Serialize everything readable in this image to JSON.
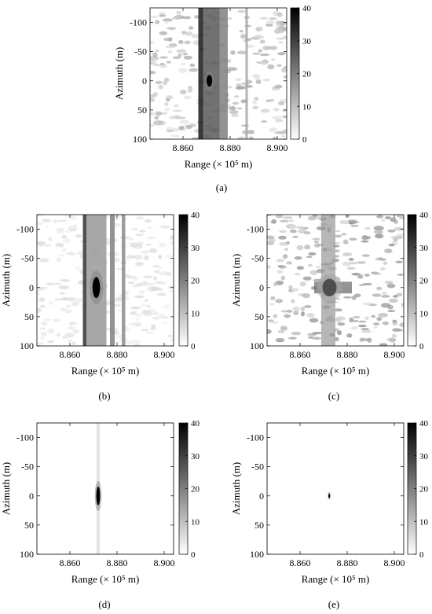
{
  "chart_data": [
    {
      "type": "heatmap",
      "id": "a",
      "caption": "(a)",
      "xlabel": "Range (× 10⁵ m)",
      "ylabel": "Azimuth (m)",
      "xticks": [
        "8.860",
        "8.880",
        "8.900"
      ],
      "xtick_values": [
        8.86,
        8.88,
        8.9
      ],
      "xlim": [
        8.846,
        8.904
      ],
      "yticks": [
        "-100",
        "-50",
        "0",
        "50",
        "100"
      ],
      "ytick_values": [
        -100,
        -50,
        0,
        50,
        100
      ],
      "ylim": [
        -125,
        100
      ],
      "colorbar": {
        "ticks": [
          "0",
          "10",
          "20",
          "30",
          "40"
        ],
        "range": [
          0,
          40
        ]
      },
      "features": [
        {
          "kind": "clutter",
          "level": 9
        },
        {
          "kind": "band",
          "x0": 8.8665,
          "x1": 8.8685,
          "level": 36
        },
        {
          "kind": "band",
          "x0": 8.8685,
          "x1": 8.8755,
          "level": 26
        },
        {
          "kind": "band",
          "x0": 8.8755,
          "x1": 8.879,
          "level": 20
        },
        {
          "kind": "band",
          "x0": 8.8865,
          "x1": 8.8875,
          "level": 14
        },
        {
          "kind": "target",
          "x": 8.8712,
          "y": 0,
          "rx": 0.0012,
          "ry": 10,
          "level": 40
        }
      ]
    },
    {
      "type": "heatmap",
      "id": "b",
      "caption": "(b)",
      "xlabel": "Range (× 10⁵ m)",
      "ylabel": "Azimuth (m)",
      "xticks": [
        "8.860",
        "8.880",
        "8.900"
      ],
      "xtick_values": [
        8.86,
        8.88,
        8.9
      ],
      "xlim": [
        8.846,
        8.904
      ],
      "yticks": [
        "-100",
        "-50",
        "0",
        "50",
        "100"
      ],
      "ytick_values": [
        -100,
        -50,
        0,
        50,
        100
      ],
      "ylim": [
        -125,
        100
      ],
      "colorbar": {
        "ticks": [
          "0",
          "10",
          "20",
          "30",
          "40"
        ],
        "range": [
          0,
          40
        ]
      },
      "features": [
        {
          "kind": "clutter",
          "level": 4
        },
        {
          "kind": "band",
          "x0": 8.8655,
          "x1": 8.867,
          "level": 32
        },
        {
          "kind": "band",
          "x0": 8.867,
          "x1": 8.8755,
          "level": 16
        },
        {
          "kind": "band",
          "x0": 8.877,
          "x1": 8.879,
          "level": 20
        },
        {
          "kind": "band",
          "x0": 8.882,
          "x1": 8.8835,
          "level": 18
        },
        {
          "kind": "target",
          "x": 8.8712,
          "y": 0,
          "rx": 0.0016,
          "ry": 18,
          "level": 40
        }
      ]
    },
    {
      "type": "heatmap",
      "id": "c",
      "caption": "(c)",
      "xlabel": "Range (× 10⁵ m)",
      "ylabel": "Azimuth (m)",
      "xticks": [
        "8.860",
        "8.880",
        "8.900"
      ],
      "xtick_values": [
        8.86,
        8.88,
        8.9
      ],
      "xlim": [
        8.846,
        8.904
      ],
      "yticks": [
        "-100",
        "-50",
        "0",
        "50",
        "100"
      ],
      "ytick_values": [
        -100,
        -50,
        0,
        50,
        100
      ],
      "ylim": [
        -125,
        100
      ],
      "colorbar": {
        "ticks": [
          "0",
          "10",
          "20",
          "30",
          "40"
        ],
        "range": [
          0,
          40
        ]
      },
      "features": [
        {
          "kind": "clutter",
          "level": 12
        },
        {
          "kind": "hcross",
          "x0": 8.866,
          "x1": 8.882,
          "y0": -10,
          "y1": 10,
          "level": 24
        },
        {
          "kind": "vcross",
          "x0": 8.869,
          "x1": 8.875,
          "y0": -125,
          "y1": 100,
          "level": 16
        },
        {
          "kind": "target",
          "x": 8.8725,
          "y": 0,
          "rx": 0.003,
          "ry": 15,
          "level": 28
        }
      ]
    },
    {
      "type": "heatmap",
      "id": "d",
      "caption": "(d)",
      "xlabel": "Range (× 10⁵ m)",
      "ylabel": "Azimuth (m)",
      "xticks": [
        "8.860",
        "8.880",
        "8.900"
      ],
      "xtick_values": [
        8.86,
        8.88,
        8.9
      ],
      "xlim": [
        8.846,
        8.904
      ],
      "yticks": [
        "-100",
        "-50",
        "0",
        "50",
        "100"
      ],
      "ytick_values": [
        -100,
        -50,
        0,
        50,
        100
      ],
      "ylim": [
        -125,
        100
      ],
      "colorbar": {
        "ticks": [
          "0",
          "10",
          "20",
          "30",
          "40"
        ],
        "range": [
          0,
          40
        ]
      },
      "features": [
        {
          "kind": "clutter",
          "level": 0
        },
        {
          "kind": "vline",
          "x0": 8.8713,
          "x1": 8.8727,
          "y0": -125,
          "y1": 100,
          "level": 7
        },
        {
          "kind": "target",
          "x": 8.872,
          "y": 0,
          "rx": 0.0008,
          "ry": 16,
          "level": 40
        }
      ]
    },
    {
      "type": "heatmap",
      "id": "e",
      "caption": "(e)",
      "xlabel": "Range (× 10⁵ m)",
      "ylabel": "Azimuth (m)",
      "xticks": [
        "8.860",
        "8.880",
        "8.900"
      ],
      "xtick_values": [
        8.86,
        8.88,
        8.9
      ],
      "xlim": [
        8.846,
        8.904
      ],
      "yticks": [
        "-100",
        "-50",
        "0",
        "50",
        "100"
      ],
      "ytick_values": [
        -100,
        -50,
        0,
        50,
        100
      ],
      "ylim": [
        -125,
        100
      ],
      "colorbar": {
        "ticks": [
          "0",
          "10",
          "20",
          "30",
          "40"
        ],
        "range": [
          0,
          40
        ]
      },
      "features": [
        {
          "kind": "clutter",
          "level": 0
        },
        {
          "kind": "target",
          "x": 8.8724,
          "y": 0,
          "rx": 0.0002,
          "ry": 4,
          "level": 40
        }
      ]
    }
  ]
}
